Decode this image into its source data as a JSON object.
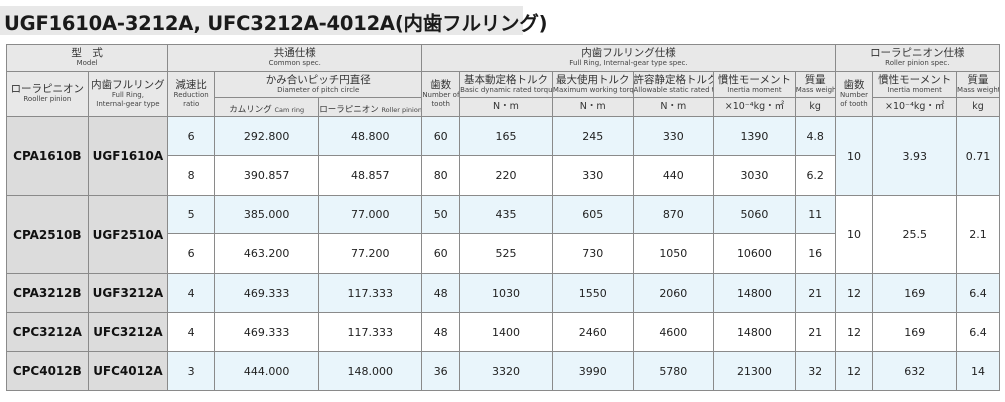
{
  "title": "UGF1610A-3212A, UFC3212A-4012A(内歯フルリング)",
  "header": {
    "model": {
      "jp": "型　式",
      "en": "Model"
    },
    "common": {
      "jp": "共通仕様",
      "en": "Common spec."
    },
    "full_ring": {
      "jp": "内歯フルリング仕様",
      "en": "Full Ring, Internal-gear type spec."
    },
    "pinion_spec": {
      "jp": "ローラピニオン仕様",
      "en": "Roller pinion spec."
    },
    "roller_pinion": {
      "jp": "ローラピニオン",
      "en": "Rooller pinion"
    },
    "internal_ring": {
      "jp": "内歯フルリング",
      "en1": "Full Ring,",
      "en2": "Internal-gear type"
    },
    "reduction": {
      "jp": "減速比",
      "en1": "Reduction",
      "en2": "ratio"
    },
    "pitch": {
      "jp": "かみ合いピッチ円直径",
      "en": "Diameter of pitch circle"
    },
    "cam_ring": {
      "jp": "カムリング",
      "en": "Cam ring"
    },
    "roller_pinion_sub": {
      "jp": "ローラピニオン",
      "en": "Roller pinion"
    },
    "teeth": {
      "jp": "歯数",
      "en1": "Number of",
      "en2": "tooth"
    },
    "dyn_torque": {
      "jp": "基本動定格トルク",
      "en": "Basic dynamic rated torque",
      "unit": "N・m"
    },
    "max_torque": {
      "jp": "最大使用トルク",
      "en": "Maximum working torque",
      "unit": "N・m"
    },
    "static_torque": {
      "jp": "許容静定格トルク",
      "en": "Allowable static rated torque",
      "unit": "N・m"
    },
    "inertia": {
      "jp": "慣性モーメント",
      "en": "Inertia moment",
      "unit": "×10⁻⁴kg・㎡"
    },
    "mass": {
      "jp": "質量",
      "en": "Mass weight",
      "unit": "kg"
    },
    "p_teeth": {
      "jp": "歯数",
      "en1": "Number",
      "en2": "of tooth"
    },
    "p_inertia": {
      "jp": "慣性モーメント",
      "en": "Inertia moment",
      "unit": "×10⁻⁴kg・㎡"
    },
    "p_mass": {
      "jp": "質量",
      "en": "Mass weight",
      "unit": "kg"
    }
  },
  "rows": [
    {
      "pinion": "CPA1610B",
      "ring": "UGF1610A",
      "ratio": "6",
      "cam": "292.800",
      "rp": "48.800",
      "teeth": "60",
      "dyn": "165",
      "max": "245",
      "static": "330",
      "inertia": "1390",
      "mass": "4.8",
      "p_teeth": "10",
      "p_inertia": "3.93",
      "p_mass": "0.71"
    },
    {
      "ratio": "8",
      "cam": "390.857",
      "rp": "48.857",
      "teeth": "80",
      "dyn": "220",
      "max": "330",
      "static": "440",
      "inertia": "3030",
      "mass": "6.2"
    },
    {
      "pinion": "CPA2510B",
      "ring": "UGF2510A",
      "ratio": "5",
      "cam": "385.000",
      "rp": "77.000",
      "teeth": "50",
      "dyn": "435",
      "max": "605",
      "static": "870",
      "inertia": "5060",
      "mass": "11",
      "p_teeth": "10",
      "p_inertia": "25.5",
      "p_mass": "2.1"
    },
    {
      "ratio": "6",
      "cam": "463.200",
      "rp": "77.200",
      "teeth": "60",
      "dyn": "525",
      "max": "730",
      "static": "1050",
      "inertia": "10600",
      "mass": "16"
    },
    {
      "pinion": "CPA3212B",
      "ring": "UGF3212A",
      "ratio": "4",
      "cam": "469.333",
      "rp": "117.333",
      "teeth": "48",
      "dyn": "1030",
      "max": "1550",
      "static": "2060",
      "inertia": "14800",
      "mass": "21",
      "p_teeth": "12",
      "p_inertia": "169",
      "p_mass": "6.4"
    },
    {
      "pinion": "CPC3212A",
      "ring": "UFC3212A",
      "ratio": "4",
      "cam": "469.333",
      "rp": "117.333",
      "teeth": "48",
      "dyn": "1400",
      "max": "2460",
      "static": "4600",
      "inertia": "14800",
      "mass": "21",
      "p_teeth": "12",
      "p_inertia": "169",
      "p_mass": "6.4"
    },
    {
      "pinion": "CPC4012B",
      "ring": "UFC4012A",
      "ratio": "3",
      "cam": "444.000",
      "rp": "148.000",
      "teeth": "36",
      "dyn": "3320",
      "max": "3990",
      "static": "5780",
      "inertia": "21300",
      "mass": "32",
      "p_teeth": "12",
      "p_inertia": "632",
      "p_mass": "14"
    }
  ]
}
